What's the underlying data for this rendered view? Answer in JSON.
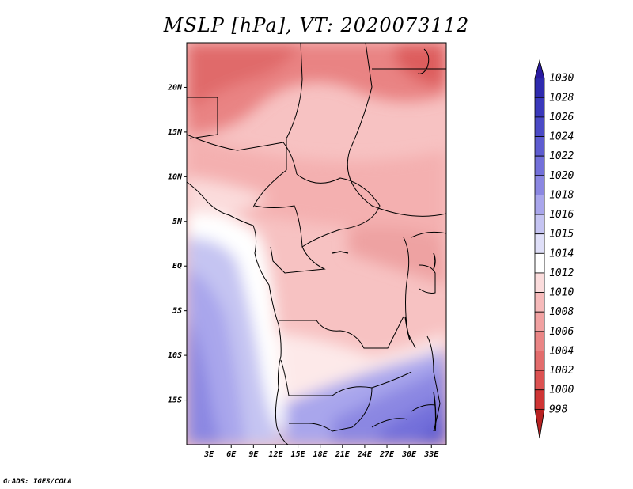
{
  "title": "MSLP [hPa], VT: 2020073112",
  "footer": "GrADS: IGES/COLA",
  "map": {
    "lon_range": [
      0,
      35
    ],
    "lat_range": [
      -20,
      25
    ],
    "lat_ticks": [
      {
        "value": 20,
        "label": "20N"
      },
      {
        "value": 15,
        "label": "15N"
      },
      {
        "value": 10,
        "label": "10N"
      },
      {
        "value": 5,
        "label": "5N"
      },
      {
        "value": 0,
        "label": "EQ"
      },
      {
        "value": -5,
        "label": "5S"
      },
      {
        "value": -10,
        "label": "10S"
      },
      {
        "value": -15,
        "label": "15S"
      }
    ],
    "lon_ticks": [
      {
        "value": 3,
        "label": "3E"
      },
      {
        "value": 6,
        "label": "6E"
      },
      {
        "value": 9,
        "label": "9E"
      },
      {
        "value": 12,
        "label": "12E"
      },
      {
        "value": 15,
        "label": "15E"
      },
      {
        "value": 18,
        "label": "18E"
      },
      {
        "value": 21,
        "label": "21E"
      },
      {
        "value": 24,
        "label": "24E"
      },
      {
        "value": 27,
        "label": "27E"
      },
      {
        "value": 30,
        "label": "30E"
      },
      {
        "value": 33,
        "label": "33E"
      }
    ]
  },
  "colorbar": {
    "levels": [
      {
        "label": "1030",
        "color": "#2a1aa0"
      },
      {
        "label": "1028",
        "color": "#2e2aae"
      },
      {
        "label": "1026",
        "color": "#3a38bb"
      },
      {
        "label": "1024",
        "color": "#4b4ac6"
      },
      {
        "label": "1022",
        "color": "#5e5cd0"
      },
      {
        "label": "1020",
        "color": "#7370da"
      },
      {
        "label": "1018",
        "color": "#8b87e2"
      },
      {
        "label": "1016",
        "color": "#a9a6ec"
      },
      {
        "label": "1015",
        "color": "#c5c4f2"
      },
      {
        "label": "1014",
        "color": "#dfdff8"
      },
      {
        "label": "1012",
        "color": "#ffffff"
      },
      {
        "label": "1010",
        "color": "#fbdcdc"
      },
      {
        "label": "1008",
        "color": "#f6baba"
      },
      {
        "label": "1006",
        "color": "#f1a1a1"
      },
      {
        "label": "1004",
        "color": "#ea8585"
      },
      {
        "label": "1002",
        "color": "#e36c6c"
      },
      {
        "label": "1000",
        "color": "#dc5252"
      },
      {
        "label": "998",
        "color": "#cf3535"
      }
    ],
    "bottom_color": "#b82222"
  }
}
